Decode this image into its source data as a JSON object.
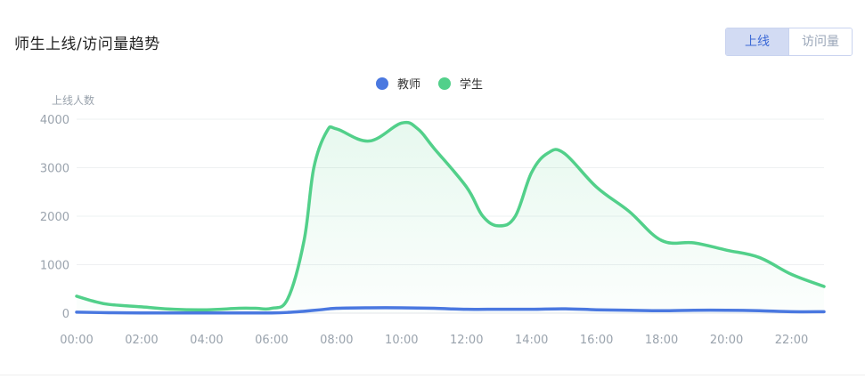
{
  "header": {
    "title": "师生上线/访问量趋势",
    "toggle": {
      "active_label": "上线",
      "inactive_label": "访问量"
    }
  },
  "legend": [
    {
      "name": "教师",
      "color": "#4a78e0"
    },
    {
      "name": "学生",
      "color": "#52d08a"
    }
  ],
  "chart_data": {
    "type": "area",
    "ylabel": "上线人数",
    "ylim": [
      0,
      4000
    ],
    "yticks": [
      "0",
      "1000",
      "2000",
      "3000",
      "4000"
    ],
    "xlim": [
      0,
      23
    ],
    "xticks": [
      "00:00",
      "02:00",
      "04:00",
      "06:00",
      "08:00",
      "10:00",
      "12:00",
      "14:00",
      "16:00",
      "18:00",
      "20:00",
      "22:00"
    ],
    "grid": true,
    "legend_position": "top-center",
    "series": [
      {
        "name": "教师",
        "color": "#4a78e0",
        "fill": false,
        "x": [
          0,
          1,
          2,
          3,
          4,
          5,
          6,
          6.5,
          7,
          7.5,
          8,
          9,
          10,
          11,
          12,
          13,
          14,
          15,
          16,
          17,
          18,
          19,
          20,
          21,
          22,
          23
        ],
        "values": [
          20,
          10,
          5,
          5,
          5,
          5,
          5,
          15,
          40,
          70,
          100,
          110,
          110,
          100,
          80,
          80,
          80,
          90,
          70,
          60,
          50,
          60,
          60,
          50,
          30,
          30
        ]
      },
      {
        "name": "学生",
        "color": "#52d08a",
        "fill": true,
        "x": [
          0,
          0.5,
          1,
          2,
          3,
          4,
          5,
          5.5,
          6,
          6.5,
          7,
          7.3,
          7.7,
          8,
          9,
          10,
          10.5,
          11,
          12,
          12.5,
          13,
          13.5,
          14,
          14.5,
          15,
          16,
          17,
          18,
          19,
          20,
          21,
          22,
          23
        ],
        "values": [
          350,
          250,
          180,
          130,
          80,
          70,
          100,
          100,
          100,
          300,
          1500,
          3000,
          3750,
          3800,
          3550,
          3920,
          3800,
          3400,
          2600,
          2000,
          1800,
          2000,
          2900,
          3300,
          3300,
          2600,
          2100,
          1500,
          1450,
          1300,
          1150,
          800,
          550
        ]
      }
    ]
  }
}
